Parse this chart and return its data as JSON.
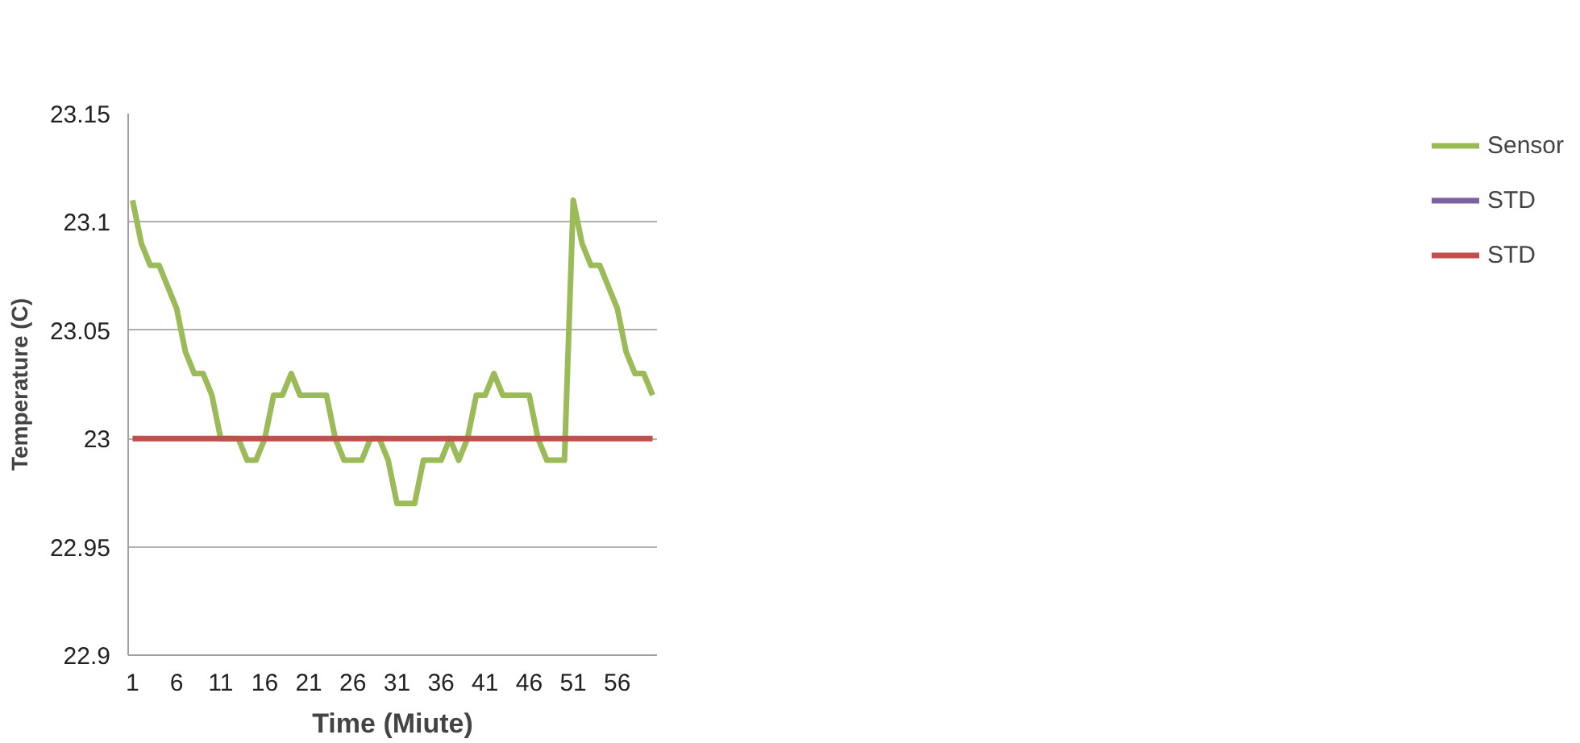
{
  "chart_data": {
    "type": "line",
    "xlabel": "Time (Miute)",
    "ylabel": "Temperature (C)",
    "x": [
      1,
      2,
      3,
      4,
      5,
      6,
      7,
      8,
      9,
      10,
      11,
      12,
      13,
      14,
      15,
      16,
      17,
      18,
      19,
      20,
      21,
      22,
      23,
      24,
      25,
      26,
      27,
      28,
      29,
      30,
      31,
      32,
      33,
      34,
      35,
      36,
      37,
      38,
      39,
      40,
      41,
      42,
      43,
      44,
      45,
      46,
      47,
      48,
      49,
      50,
      51,
      52,
      53,
      54,
      55,
      56,
      57,
      58,
      59,
      60
    ],
    "xlim": [
      0.5,
      60.5
    ],
    "xticks": [
      1,
      6,
      11,
      16,
      21,
      26,
      31,
      36,
      41,
      46,
      51,
      56
    ],
    "ylim": [
      22.9,
      23.15
    ],
    "yticks": [
      22.9,
      22.95,
      23,
      23.05,
      23.1,
      23.15
    ],
    "series": [
      {
        "name": "Sensor",
        "color": "#9bbb59",
        "values": [
          23.11,
          23.09,
          23.08,
          23.08,
          23.07,
          23.06,
          23.04,
          23.03,
          23.03,
          23.02,
          23.0,
          23.0,
          23.0,
          22.99,
          22.99,
          23.0,
          23.02,
          23.02,
          23.03,
          23.02,
          23.02,
          23.02,
          23.02,
          23.0,
          22.99,
          22.99,
          22.99,
          23.0,
          23.0,
          22.99,
          22.97,
          22.97,
          22.97,
          22.99,
          22.99,
          22.99,
          23.0,
          22.99,
          23.0,
          23.02,
          23.02,
          23.03,
          23.02,
          23.02,
          23.02,
          23.02,
          23.0,
          22.99,
          22.99,
          22.99,
          23.11,
          23.09,
          23.08,
          23.08,
          23.07,
          23.06,
          23.04,
          23.03,
          23.03,
          23.02
        ]
      },
      {
        "name": "STD",
        "color": "#7d60a0",
        "values": [
          null,
          null,
          null,
          null,
          null,
          null,
          null,
          null,
          null,
          null,
          null,
          null,
          null,
          null,
          null,
          null,
          null,
          null,
          null,
          null,
          null,
          null,
          null,
          null,
          null,
          null,
          null,
          null,
          null,
          null,
          null,
          null,
          null,
          null,
          null,
          null,
          null,
          null,
          null,
          null,
          null,
          null,
          null,
          null,
          null,
          null,
          null,
          null,
          null,
          null,
          null,
          null,
          null,
          null,
          null,
          null,
          null,
          null,
          null,
          null
        ]
      },
      {
        "name": "STD",
        "color": "#c0504d",
        "values": [
          23,
          23,
          23,
          23,
          23,
          23,
          23,
          23,
          23,
          23,
          23,
          23,
          23,
          23,
          23,
          23,
          23,
          23,
          23,
          23,
          23,
          23,
          23,
          23,
          23,
          23,
          23,
          23,
          23,
          23,
          23,
          23,
          23,
          23,
          23,
          23,
          23,
          23,
          23,
          23,
          23,
          23,
          23,
          23,
          23,
          23,
          23,
          23,
          23,
          23,
          23,
          23,
          23,
          23,
          23,
          23,
          23,
          23,
          23,
          23
        ]
      }
    ],
    "grid": "y",
    "legend": "right",
    "marker": "none",
    "line_style": "solid"
  }
}
